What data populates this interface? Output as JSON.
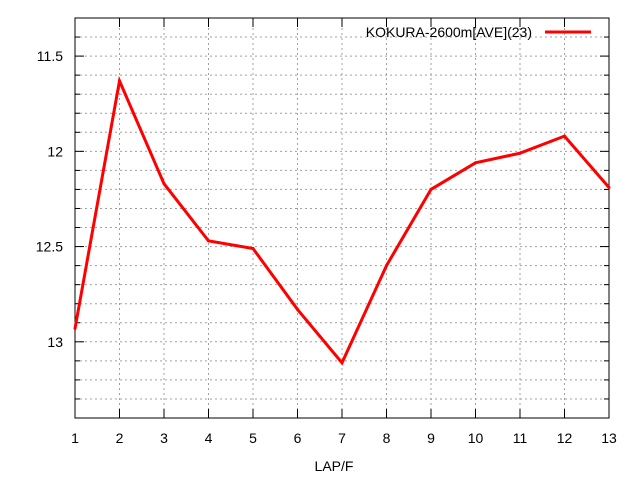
{
  "chart_data": {
    "type": "line",
    "title": "",
    "xlabel": "LAP/F",
    "ylabel": "",
    "x": [
      1,
      2,
      3,
      4,
      5,
      6,
      7,
      8,
      9,
      10,
      11,
      12,
      13
    ],
    "xlim": [
      1,
      13
    ],
    "ylim": [
      11.3,
      13.4
    ],
    "y_inverted": true,
    "yticks": [
      11.5,
      12,
      12.5,
      13
    ],
    "ytick_labels": [
      "11.5",
      "12",
      "12.5",
      "13"
    ],
    "y_minor_step": 0.1,
    "xticks": [
      1,
      2,
      3,
      4,
      5,
      6,
      7,
      8,
      9,
      10,
      11,
      12,
      13
    ],
    "xtick_labels": [
      "1",
      "2",
      "3",
      "4",
      "5",
      "6",
      "7",
      "8",
      "9",
      "10",
      "11",
      "12",
      "13"
    ],
    "grid": true,
    "legend_position": "top-right",
    "series": [
      {
        "name": "KOKURA-2600m[AVE](23)",
        "color": "#ff0000",
        "values": [
          12.93,
          11.63,
          12.17,
          12.47,
          12.51,
          12.83,
          13.11,
          12.6,
          12.2,
          12.06,
          12.01,
          11.92,
          12.19
        ]
      }
    ]
  }
}
